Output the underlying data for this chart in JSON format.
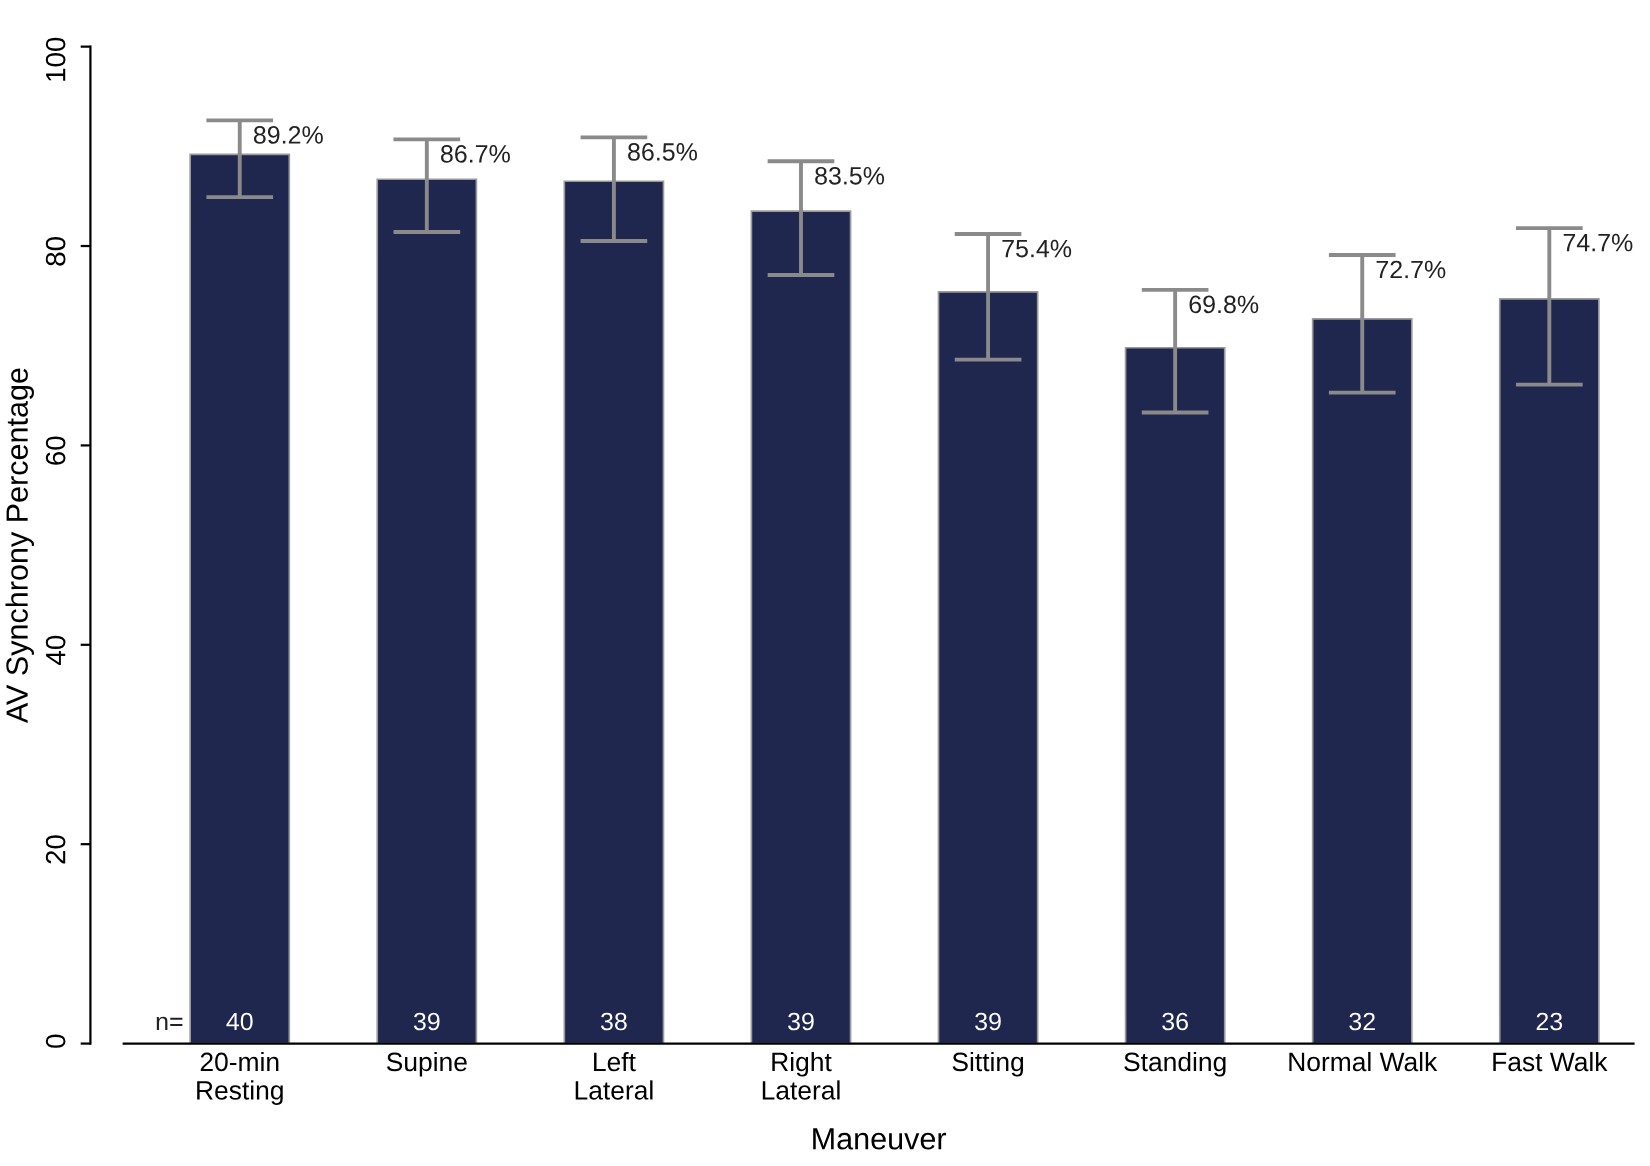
{
  "chart_data": {
    "type": "bar",
    "xlabel": "Maneuver",
    "ylabel": "AV Synchrony Percentage",
    "categories": [
      "20-min\nResting",
      "Supine",
      "Left\nLateral",
      "Right\nLateral",
      "Sitting",
      "Standing",
      "Normal Walk",
      "Fast Walk"
    ],
    "values": [
      89.2,
      86.7,
      86.5,
      83.5,
      75.4,
      69.8,
      72.7,
      74.7
    ],
    "value_labels": [
      "89.2%",
      "86.7%",
      "86.5%",
      "83.5%",
      "75.4%",
      "69.8%",
      "72.7%",
      "74.7%"
    ],
    "errors": [
      [
        84.9,
        92.6
      ],
      [
        81.4,
        90.7
      ],
      [
        80.5,
        90.9
      ],
      [
        77.1,
        88.5
      ],
      [
        68.6,
        81.2
      ],
      [
        63.3,
        75.6
      ],
      [
        65.3,
        79.1
      ],
      [
        66.1,
        81.8
      ]
    ],
    "color": "#20274f",
    "ylim": [
      0,
      100
    ],
    "yticks": [
      0,
      20,
      40,
      60,
      80,
      100
    ],
    "grid": false,
    "annotations": [
      "n=",
      "40",
      "39",
      "38",
      "39",
      "39",
      "36",
      "32",
      "23"
    ]
  }
}
